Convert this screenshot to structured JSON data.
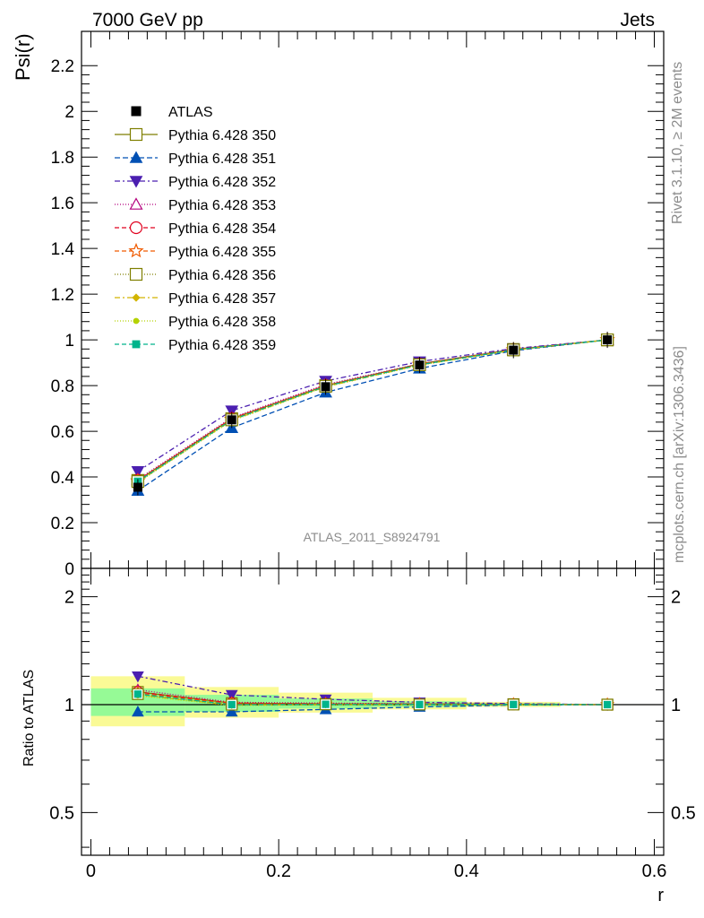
{
  "header": {
    "left": "7000 GeV pp",
    "right": "Jets"
  },
  "side_labels": {
    "rivet": "Rivet 3.1.10, ≥ 2M events",
    "mcplots": "mcplots.cern.ch [arXiv:1306.3436]"
  },
  "chart_data": [
    {
      "type": "line",
      "panel": "main",
      "ylabel": "Psi(r)",
      "watermark": "ATLAS_2011_S8924791",
      "ylim": [
        0,
        2.35
      ],
      "xlim": [
        -0.01,
        0.61
      ],
      "yticks": [
        0,
        0.2,
        0.4,
        0.6,
        0.8,
        1,
        1.2,
        1.4,
        1.6,
        1.8,
        2,
        2.2
      ],
      "ytick_labels": [
        "0",
        "0.2",
        "0.4",
        "0.6",
        "0.8",
        "1",
        "1.2",
        "1.4",
        "1.6",
        "1.8",
        "2",
        "2.2"
      ],
      "legend_position": "top-left",
      "x": [
        0.05,
        0.15,
        0.25,
        0.35,
        0.45,
        0.55
      ],
      "data": {
        "name": "ATLAS",
        "color": "#000000",
        "marker": "square-filled",
        "values": [
          0.355,
          0.65,
          0.795,
          0.89,
          0.955,
          1.0
        ]
      },
      "series": [
        {
          "name": "Pythia 6.428 350",
          "color": "#7f7f00",
          "dash": "solid",
          "marker": "square-open",
          "values": [
            0.385,
            0.655,
            0.8,
            0.895,
            0.958,
            1.0
          ]
        },
        {
          "name": "Pythia 6.428 351",
          "color": "#0050b4",
          "dash": "6,3",
          "marker": "triangle-up-filled",
          "values": [
            0.34,
            0.615,
            0.77,
            0.875,
            0.952,
            1.0
          ]
        },
        {
          "name": "Pythia 6.428 352",
          "color": "#4b1fb0",
          "dash": "6,3,2,3",
          "marker": "triangle-down-filled",
          "values": [
            0.425,
            0.69,
            0.82,
            0.905,
            0.962,
            1.0
          ]
        },
        {
          "name": "Pythia 6.428 353",
          "color": "#b4007d",
          "dash": "1,2",
          "marker": "triangle-up-open",
          "values": [
            0.39,
            0.66,
            0.805,
            0.895,
            0.958,
            1.0
          ]
        },
        {
          "name": "Pythia 6.428 354",
          "color": "#e0001e",
          "dash": "5,3",
          "marker": "circle-open",
          "values": [
            0.385,
            0.655,
            0.8,
            0.893,
            0.957,
            1.0
          ]
        },
        {
          "name": "Pythia 6.428 355",
          "color": "#f05a00",
          "dash": "5,3",
          "marker": "star-open",
          "values": [
            0.382,
            0.652,
            0.798,
            0.892,
            0.956,
            1.0
          ]
        },
        {
          "name": "Pythia 6.428 356",
          "color": "#7f7f00",
          "dash": "1,2",
          "marker": "square-open",
          "values": [
            0.38,
            0.65,
            0.797,
            0.891,
            0.956,
            1.0
          ]
        },
        {
          "name": "Pythia 6.428 357",
          "color": "#d2b400",
          "dash": "6,3,2,3",
          "marker": "diamond-small",
          "values": [
            0.378,
            0.648,
            0.795,
            0.89,
            0.955,
            1.0
          ]
        },
        {
          "name": "Pythia 6.428 358",
          "color": "#b4d200",
          "dash": "1,2",
          "marker": "dot-small",
          "values": [
            0.376,
            0.646,
            0.794,
            0.889,
            0.955,
            1.0
          ]
        },
        {
          "name": "Pythia 6.428 359",
          "color": "#00b48c",
          "dash": "5,3",
          "marker": "square-small",
          "values": [
            0.38,
            0.65,
            0.797,
            0.891,
            0.956,
            1.0
          ]
        }
      ]
    },
    {
      "type": "line",
      "panel": "ratio",
      "ylabel": "Ratio to ATLAS",
      "xlabel": "r",
      "xlim": [
        -0.01,
        0.61
      ],
      "ylim": [
        0.38,
        2.4
      ],
      "log_y": true,
      "xticks": [
        0,
        0.2,
        0.4,
        0.6
      ],
      "xtick_labels": [
        "0",
        "0.2",
        "0.4",
        "0.6"
      ],
      "yticks": [
        0.5,
        1,
        2
      ],
      "ytick_labels": [
        "0.5",
        "1",
        "2"
      ],
      "bands": {
        "x_edges": [
          0.0,
          0.1,
          0.2,
          0.3,
          0.4,
          0.5,
          0.6
        ],
        "yellow_color": "#fafa96",
        "green_color": "#96fa96",
        "yellow": [
          [
            0.87,
            1.2
          ],
          [
            0.92,
            1.12
          ],
          [
            0.95,
            1.08
          ],
          [
            0.97,
            1.045
          ],
          [
            0.985,
            1.018
          ],
          [
            1.0,
            1.0
          ]
        ],
        "green": [
          [
            0.93,
            1.11
          ],
          [
            0.955,
            1.065
          ],
          [
            0.975,
            1.04
          ],
          [
            0.985,
            1.022
          ],
          [
            0.993,
            1.009
          ],
          [
            1.0,
            1.0
          ]
        ]
      },
      "x": [
        0.05,
        0.15,
        0.25,
        0.35,
        0.45,
        0.55
      ],
      "series_ratios": [
        [
          1.085,
          1.01,
          1.005,
          1.005,
          1.003,
          1.0
        ],
        [
          0.955,
          0.955,
          0.97,
          0.985,
          0.998,
          1.0
        ],
        [
          1.2,
          1.065,
          1.035,
          1.015,
          1.007,
          1.0
        ],
        [
          1.1,
          1.015,
          1.01,
          1.005,
          1.003,
          1.0
        ],
        [
          1.085,
          1.01,
          1.005,
          1.003,
          1.002,
          1.0
        ],
        [
          1.075,
          1.005,
          1.003,
          1.002,
          1.001,
          1.0
        ],
        [
          1.07,
          1.0,
          1.002,
          1.001,
          1.001,
          1.0
        ],
        [
          1.065,
          0.997,
          1.0,
          1.0,
          1.0,
          1.0
        ],
        [
          1.06,
          0.994,
          0.998,
          0.999,
          1.0,
          1.0
        ],
        [
          1.07,
          1.0,
          1.002,
          1.001,
          1.001,
          1.0
        ]
      ]
    }
  ]
}
